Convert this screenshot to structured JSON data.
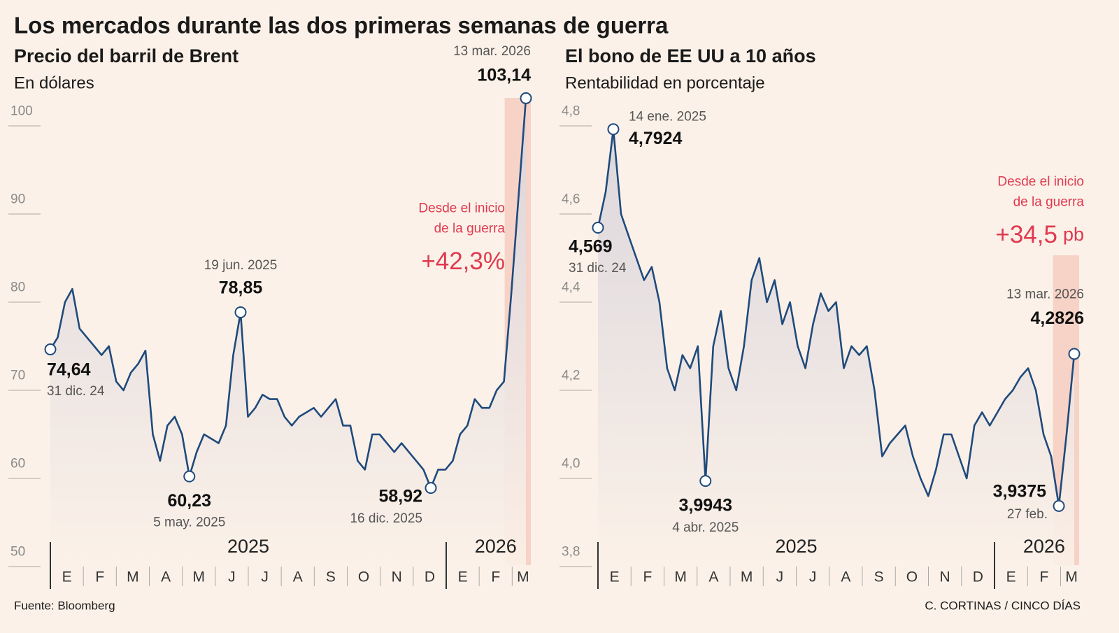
{
  "title": "Los mercados durante las dos primeras semanas de guerra",
  "source": "Fuente: Bloomberg",
  "credit": "C. CORTINAS / CINCO DÍAS",
  "chart_data": [
    {
      "type": "line",
      "title": "Precio del barril de Brent",
      "subtitle": "En dólares",
      "months": [
        "E",
        "F",
        "M",
        "A",
        "M",
        "J",
        "J",
        "A",
        "S",
        "O",
        "N",
        "D",
        "E",
        "F",
        "M"
      ],
      "years": [
        "2025",
        "2026"
      ],
      "color": "#1f4a7c",
      "values": [
        74.64,
        76,
        80,
        81.5,
        77,
        76,
        75,
        74,
        75,
        71,
        70,
        72,
        73,
        74.5,
        65,
        62,
        66,
        67,
        65,
        60.23,
        63,
        65,
        64.5,
        64,
        66,
        74,
        78.85,
        67,
        68,
        69.5,
        69,
        69,
        67,
        66,
        67,
        67.5,
        68,
        67,
        68,
        69,
        66,
        66,
        62,
        61,
        65,
        65,
        64,
        63,
        64,
        63,
        62,
        61,
        58.92,
        61,
        61,
        62,
        65,
        66,
        69,
        68,
        68,
        70,
        71,
        81,
        92,
        103.14
      ],
      "ylim": [
        50,
        103.5
      ],
      "yticks": [
        50,
        60,
        70,
        80,
        90,
        100
      ],
      "annotations": [
        {
          "value": 74.64,
          "label": "74,64",
          "date": "31 dic. 24"
        },
        {
          "value": 78.85,
          "label": "78,85",
          "date": "19 jun. 2025"
        },
        {
          "value": 60.23,
          "label": "60,23",
          "date": "5 may. 2025"
        },
        {
          "value": 58.92,
          "label": "58,92",
          "date": "16 dic. 2025"
        },
        {
          "value": 103.14,
          "label": "103,14",
          "date": "13 mar. 2026"
        }
      ],
      "note": [
        "Desde el inicio",
        "de la guerra"
      ],
      "change": "+42,3%"
    },
    {
      "type": "line",
      "title": "El bono de EE UU a 10 años",
      "subtitle": "Rentabilidad en porcentaje",
      "months": [
        "E",
        "F",
        "M",
        "A",
        "M",
        "J",
        "J",
        "A",
        "S",
        "O",
        "N",
        "D",
        "E",
        "F",
        "M"
      ],
      "years": [
        "2025",
        "2026"
      ],
      "color": "#1f4a7c",
      "values": [
        4.569,
        4.65,
        4.7924,
        4.6,
        4.55,
        4.5,
        4.45,
        4.48,
        4.4,
        4.25,
        4.2,
        4.28,
        4.25,
        4.3,
        3.9943,
        4.3,
        4.38,
        4.25,
        4.2,
        4.3,
        4.45,
        4.5,
        4.4,
        4.45,
        4.35,
        4.4,
        4.3,
        4.25,
        4.35,
        4.42,
        4.38,
        4.4,
        4.25,
        4.3,
        4.28,
        4.3,
        4.2,
        4.05,
        4.08,
        4.1,
        4.12,
        4.05,
        4.0,
        3.96,
        4.02,
        4.1,
        4.1,
        4.05,
        4.0,
        4.12,
        4.15,
        4.12,
        4.15,
        4.18,
        4.2,
        4.23,
        4.25,
        4.2,
        4.1,
        4.05,
        3.9375,
        4.1,
        4.2826
      ],
      "ylim": [
        3.8,
        4.85
      ],
      "yticks": [
        {
          "value": 3.8,
          "label": "3,8"
        },
        {
          "value": 4.0,
          "label": "4,0"
        },
        {
          "value": 4.2,
          "label": "4,2"
        },
        {
          "value": 4.4,
          "label": "4,4"
        },
        {
          "value": 4.6,
          "label": "4,6"
        },
        {
          "value": 4.8,
          "label": "4,8"
        }
      ],
      "annotations": [
        {
          "value": 4.569,
          "label": "4,569",
          "date": "31 dic. 24"
        },
        {
          "value": 4.7924,
          "label": "4,7924",
          "date": "14 ene. 2025"
        },
        {
          "value": 3.9943,
          "label": "3,9943",
          "date": "4 abr. 2025"
        },
        {
          "value": 3.9375,
          "label": "3,9375",
          "date": "27 feb."
        },
        {
          "value": 4.2826,
          "label": "4,2826",
          "date": "13 mar. 2026"
        }
      ],
      "note": [
        "Desde el inicio",
        "de la guerra"
      ],
      "change": "+34,5",
      "change_unit": "pb"
    }
  ]
}
